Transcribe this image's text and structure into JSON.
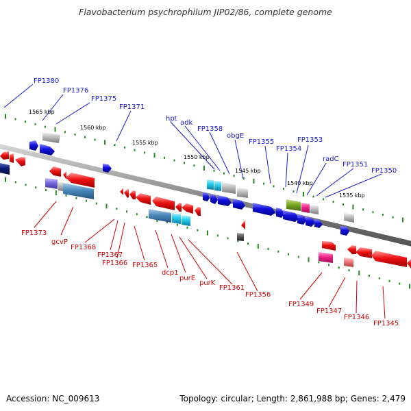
{
  "title": "Flavobacterium psychrophilum JIP02/86, complete genome",
  "accession": "Accession: NC_009613",
  "summary": "Topology: circular; Length: 2,861,988 bp; Genes: 2,479",
  "colors": {
    "backbone": "#8a8a8a",
    "tick": "#228b22",
    "label_plus": "#1a1acc",
    "label_minus": "#cc0000",
    "gene_red": "#ee1111",
    "gene_blue": "#1111dd",
    "gene_cyan": "#22ccee",
    "gene_steel": "#4a88bb",
    "gene_gray": "#bbbbbb",
    "gene_olive": "#77aa22",
    "gene_magenta": "#ee2288",
    "gene_navy": "#0b1a77",
    "gene_purple": "#7766dd",
    "gene_pink": "#ee7777",
    "gene_dark": "#555555"
  },
  "scale_labels": [
    "1565 kbp",
    "1560 kbp",
    "1555 kbp",
    "1550 kbp",
    "1545 kbp",
    "1540 kbp",
    "1535 kbp"
  ],
  "plus_labels": [
    "FP1380",
    "FP1376",
    "FP1375",
    "FP1371",
    "hpt",
    "adk",
    "FP1358",
    "obgE",
    "FP1355",
    "FP1354",
    "FP1353",
    "radC",
    "FP1351",
    "FP1350"
  ],
  "minus_labels": [
    "FP1373",
    "gcvP",
    "FP1368",
    "FP1367",
    "FP1366",
    "FP1365",
    "dcp1",
    "purE",
    "purK",
    "FP1361",
    "FP1356",
    "FP1349",
    "FP1347",
    "FP1346",
    "FP1345"
  ]
}
